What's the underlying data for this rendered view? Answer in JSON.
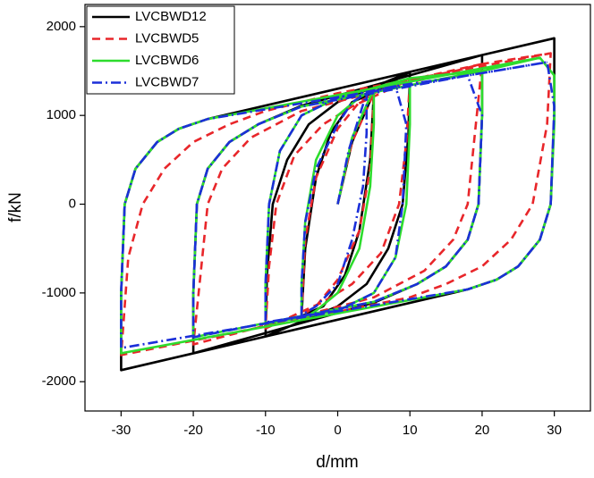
{
  "chart_data": {
    "type": "line",
    "xlabel": "d/mm",
    "ylabel": "f/kN",
    "xlim": [
      -35,
      35
    ],
    "ylim": [
      -2330,
      2250
    ],
    "xticks": [
      -30,
      -20,
      -10,
      0,
      10,
      20,
      30
    ],
    "yticks": [
      -2000,
      -1000,
      0,
      1000,
      2000
    ],
    "legend": "upper left",
    "series": [
      {
        "name": "LVCBWD12",
        "color": "#000000",
        "dash": "none",
        "x": [
          0,
          2,
          5,
          4.5,
          3,
          1,
          -2,
          -5,
          -4.5,
          -3,
          -1,
          2,
          5,
          10,
          9.8,
          9,
          7,
          4,
          0,
          -10,
          -9.8,
          -9,
          -7,
          -4,
          0,
          10,
          20,
          20,
          19.5,
          18,
          15,
          11,
          5,
          -20,
          -20,
          -19.5,
          -18,
          -15,
          -11,
          -5,
          20,
          30,
          30,
          29.5,
          28,
          25,
          22,
          18,
          -30,
          -30,
          -29.5,
          -28,
          -25,
          -22,
          -18,
          30
        ],
        "values": [
          0,
          700,
          1260,
          500,
          -300,
          -800,
          -1150,
          -1260,
          -500,
          300,
          800,
          1150,
          1260,
          1490,
          800,
          0,
          -500,
          -900,
          -1150,
          -1490,
          -800,
          0,
          500,
          900,
          1150,
          1490,
          1680,
          1000,
          0,
          -400,
          -700,
          -900,
          -1110,
          -1680,
          -1000,
          0,
          400,
          700,
          900,
          1110,
          1680,
          1870,
          1000,
          0,
          -400,
          -700,
          -850,
          -960,
          -1870,
          -1000,
          0,
          400,
          700,
          850,
          960,
          1870
        ]
      },
      {
        "name": "LVCBWD5",
        "color": "#e8262a",
        "dash": "9,6",
        "x": [
          0,
          2,
          5,
          4.5,
          3,
          0,
          -3,
          -5,
          -4.5,
          -3,
          0,
          3,
          5,
          10,
          9.5,
          8.5,
          6,
          2,
          -2,
          -10,
          -9.5,
          -8.5,
          -6,
          -2,
          2,
          10,
          20,
          19,
          18,
          16,
          12,
          5,
          -20,
          -19,
          -18,
          -16,
          -12,
          -5,
          20,
          29.5,
          29,
          27,
          24,
          20,
          15,
          10,
          -30,
          -29,
          -27,
          -24,
          -20,
          -15,
          -10,
          0,
          29.5
        ],
        "values": [
          0,
          700,
          1250,
          400,
          -300,
          -850,
          -1150,
          -1250,
          -400,
          300,
          850,
          1150,
          1250,
          1400,
          700,
          0,
          -550,
          -900,
          -1100,
          -1400,
          -700,
          0,
          550,
          900,
          1100,
          1400,
          1580,
          800,
          0,
          -400,
          -750,
          -1050,
          -1580,
          -800,
          0,
          400,
          750,
          1050,
          1580,
          1700,
          900,
          0,
          -400,
          -700,
          -900,
          -1050,
          -1700,
          -600,
          0,
          400,
          700,
          900,
          1050,
          1250,
          1700
        ]
      },
      {
        "name": "LVCBWD6",
        "color": "#2ddc2d",
        "dash": "none",
        "x": [
          0,
          2,
          5,
          5,
          4.5,
          3,
          0,
          -3,
          -5,
          -5,
          -4.5,
          -3,
          0,
          3,
          5,
          10,
          10,
          9.5,
          8,
          5,
          0,
          -10,
          -10,
          -9.5,
          -8,
          -5,
          0,
          10,
          20,
          20,
          19.5,
          18,
          15,
          11,
          5,
          -20,
          -20,
          -19.5,
          -18,
          -15,
          -11,
          -5,
          20,
          28,
          30,
          30,
          29.5,
          28,
          25,
          22,
          18,
          -30,
          -30,
          -29.5,
          -28,
          -25,
          -22,
          -18,
          28
        ],
        "values": [
          0,
          750,
          1300,
          900,
          200,
          -500,
          -1000,
          -1200,
          -1300,
          -900,
          -200,
          500,
          1000,
          1200,
          1300,
          1420,
          900,
          0,
          -600,
          -1000,
          -1200,
          -1350,
          -900,
          0,
          600,
          1000,
          1200,
          1420,
          1500,
          1000,
          0,
          -400,
          -700,
          -900,
          -1100,
          -1500,
          -1000,
          0,
          400,
          700,
          900,
          1100,
          1500,
          1650,
          1450,
          900,
          0,
          -400,
          -700,
          -850,
          -960,
          -1680,
          -1000,
          0,
          400,
          700,
          850,
          960,
          1650
        ]
      },
      {
        "name": "LVCBWD7",
        "color": "#1b2fd9",
        "dash": "11,4,2,4",
        "x": [
          0,
          1.5,
          4,
          4,
          3.5,
          2,
          0,
          -3,
          -5,
          -5,
          -4.5,
          -3,
          0,
          2,
          4,
          8,
          9.5,
          9,
          8,
          5,
          0,
          -10,
          -10,
          -9.5,
          -8,
          -5,
          0,
          8,
          18,
          20,
          19.5,
          18,
          15,
          11,
          5,
          -20,
          -20,
          -19.5,
          -18,
          -15,
          -11,
          -5,
          18,
          29,
          30,
          29.5,
          28,
          25,
          22,
          18,
          -30,
          -30,
          -29.5,
          -28,
          -25,
          -22,
          -18,
          29
        ],
        "values": [
          0,
          600,
          1250,
          800,
          200,
          -400,
          -900,
          -1150,
          -1250,
          -900,
          -200,
          400,
          900,
          1150,
          1250,
          1330,
          900,
          0,
          -600,
          -1000,
          -1200,
          -1330,
          -900,
          0,
          600,
          1000,
          1200,
          1330,
          1450,
          1000,
          0,
          -400,
          -700,
          -900,
          -1100,
          -1500,
          -1000,
          0,
          400,
          700,
          900,
          1100,
          1450,
          1600,
          1100,
          0,
          -400,
          -700,
          -850,
          -960,
          -1620,
          -1000,
          0,
          400,
          700,
          850,
          960,
          1600
        ]
      }
    ]
  }
}
